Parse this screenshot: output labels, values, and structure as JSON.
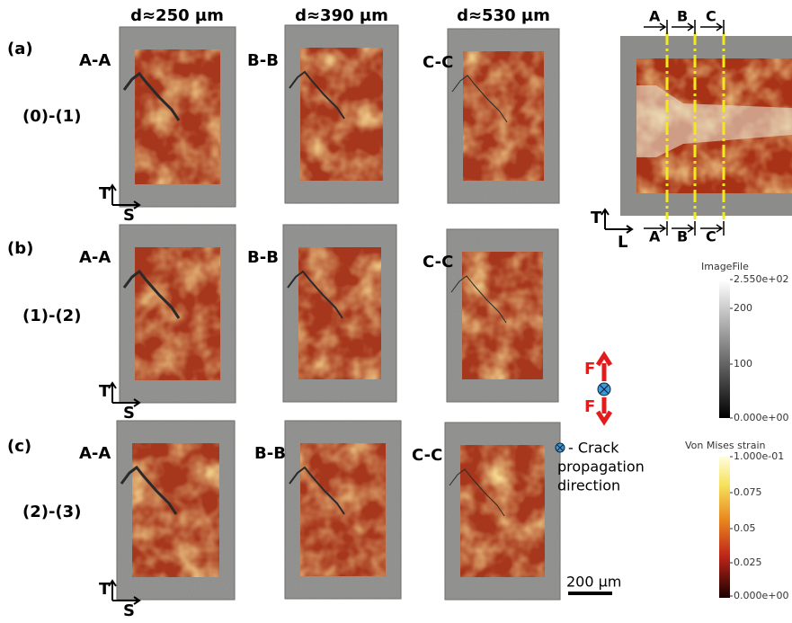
{
  "columns": [
    "d≈250 µm",
    "d≈390 µm",
    "d≈530 µm"
  ],
  "rows": [
    {
      "label": "(a)",
      "step": "(0)-(1)",
      "sections": [
        "A-A",
        "B-B",
        "C-C"
      ],
      "axes": {
        "vertical": "T",
        "horizontal": "S"
      }
    },
    {
      "label": "(b)",
      "step": "(1)-(2)",
      "sections": [
        "A-A",
        "B-B",
        "C-C"
      ],
      "axes": {
        "vertical": "T",
        "horizontal": "S"
      }
    },
    {
      "label": "(c)",
      "step": "(2)-(3)",
      "sections": [
        "A-A",
        "B-B",
        "C-C"
      ],
      "axes": {
        "vertical": "T",
        "horizontal": "S"
      }
    }
  ],
  "overview": {
    "top_markers": [
      "A",
      "B",
      "C"
    ],
    "bottom_markers": [
      "A",
      "B",
      "C"
    ],
    "axes": {
      "vertical": "T",
      "horizontal": "L"
    }
  },
  "force_labels": [
    "F",
    "F"
  ],
  "legend": {
    "lines": [
      "- Crack",
      "propagation",
      "direction"
    ]
  },
  "scale_bar": "200 µm",
  "colorbars": [
    {
      "title": "ImageFile",
      "ticks": [
        "2.550e+02",
        "200",
        "100",
        "0.000e+00"
      ]
    },
    {
      "title": "Von Mises strain",
      "ticks": [
        "1.000e-01",
        "0.075",
        "0.05",
        "0.025",
        "0.000e+00"
      ]
    }
  ]
}
